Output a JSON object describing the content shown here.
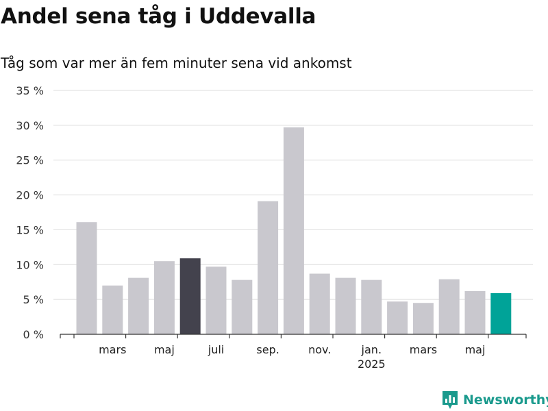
{
  "title": "Andel sena tåg i Uddevalla",
  "subtitle": "Tåg som var mer än fem minuter sena vid ankomst",
  "brand": {
    "name": "Newsworthy",
    "icon": "newsworthy-logo-icon",
    "color": "#1a9a8d"
  },
  "chart_data": {
    "type": "bar",
    "title": "Andel sena tåg i Uddevalla",
    "subtitle": "Tåg som var mer än fem minuter sena vid ankomst",
    "xlabel": "",
    "ylabel": "",
    "ylim": [
      0,
      35
    ],
    "yticks": [
      0,
      5,
      10,
      15,
      20,
      25,
      30,
      35
    ],
    "ytick_labels": [
      "0 %",
      "5 %",
      "10 %",
      "15 %",
      "20 %",
      "25 %",
      "30 %",
      "35 %"
    ],
    "grid": true,
    "categories": [
      "2024-02",
      "2024-03",
      "2024-04",
      "2024-05",
      "2024-06",
      "2024-07",
      "2024-08",
      "2024-09",
      "2024-10",
      "2024-11",
      "2024-12",
      "2025-01",
      "2025-02",
      "2025-03",
      "2025-04",
      "2025-05",
      "2025-06"
    ],
    "values": [
      16.1,
      7.0,
      8.1,
      10.5,
      10.9,
      9.7,
      7.8,
      19.1,
      29.7,
      8.7,
      8.1,
      7.8,
      4.7,
      4.5,
      7.9,
      6.2,
      5.9
    ],
    "x_tick_labels": [
      {
        "category": "2024-03",
        "label": "mars"
      },
      {
        "category": "2024-05",
        "label": "maj"
      },
      {
        "category": "2024-07",
        "label": "juli"
      },
      {
        "category": "2024-09",
        "label": "sep."
      },
      {
        "category": "2024-11",
        "label": "nov."
      },
      {
        "category": "2025-01",
        "label": "jan.",
        "sublabel": "2025"
      },
      {
        "category": "2025-03",
        "label": "mars"
      },
      {
        "category": "2025-05",
        "label": "maj"
      }
    ],
    "colors": {
      "default": "#c9c8ce",
      "highlight_dark": "#43424d",
      "highlight_latest": "#00a398",
      "grid": "#dddddd",
      "axis": "#333333"
    },
    "highlights": {
      "2024-06": "highlight_dark",
      "2025-06": "highlight_latest"
    }
  }
}
